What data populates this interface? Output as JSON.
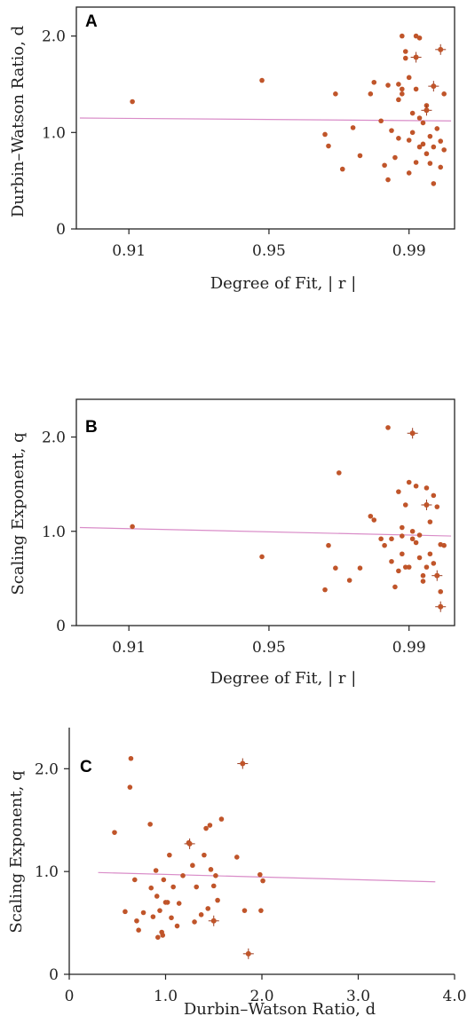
{
  "chart_data": [
    {
      "type": "scatter",
      "panel_label": "A",
      "title": "",
      "xlabel": "Degree of Fit,  | r |",
      "ylabel": "Durbin–Watson Ratio,  d",
      "xlim": [
        0.895,
        1.003
      ],
      "ylim": [
        0,
        2.3
      ],
      "xticks": [
        0.91,
        0.95,
        0.99
      ],
      "xtick_labels": [
        "0.91",
        "0.95",
        "0.99"
      ],
      "yticks": [
        0,
        1.0,
        2.0
      ],
      "ytick_labels": [
        "0",
        "1.0",
        "2.0"
      ],
      "grid": false,
      "colors": {
        "points": "#c0552a",
        "trend": "#d98cc8",
        "axis": "#222222"
      },
      "trend_line": {
        "x": [
          0.896,
          1.002
        ],
        "y": [
          1.15,
          1.12
        ]
      },
      "points": [
        [
          0.911,
          1.32
        ],
        [
          0.948,
          1.54
        ],
        [
          0.969,
          1.4
        ],
        [
          0.966,
          0.98
        ],
        [
          0.967,
          0.86
        ],
        [
          0.971,
          0.62
        ],
        [
          0.974,
          1.05
        ],
        [
          0.976,
          0.76
        ],
        [
          0.979,
          1.4
        ],
        [
          0.98,
          1.52
        ],
        [
          0.982,
          1.12
        ],
        [
          0.983,
          0.66
        ],
        [
          0.984,
          0.51
        ],
        [
          0.984,
          1.49
        ],
        [
          0.985,
          1.02
        ],
        [
          0.986,
          0.74
        ],
        [
          0.987,
          0.94
        ],
        [
          0.987,
          1.34
        ],
        [
          0.987,
          1.5
        ],
        [
          0.988,
          1.4
        ],
        [
          0.988,
          1.45
        ],
        [
          0.988,
          2.0
        ],
        [
          0.989,
          1.84
        ],
        [
          0.989,
          1.77
        ],
        [
          0.99,
          0.58
        ],
        [
          0.99,
          0.92
        ],
        [
          0.99,
          1.57
        ],
        [
          0.991,
          1.0
        ],
        [
          0.991,
          1.2
        ],
        [
          0.992,
          0.69
        ],
        [
          0.992,
          1.45
        ],
        [
          0.992,
          2.0
        ],
        [
          0.993,
          1.98
        ],
        [
          0.993,
          1.15
        ],
        [
          0.993,
          0.85
        ],
        [
          0.994,
          1.1
        ],
        [
          0.994,
          0.88
        ],
        [
          0.995,
          1.28
        ],
        [
          0.995,
          0.78
        ],
        [
          0.996,
          0.96
        ],
        [
          0.996,
          0.68
        ],
        [
          0.997,
          0.47
        ],
        [
          0.997,
          0.85
        ],
        [
          0.998,
          1.04
        ],
        [
          0.999,
          0.91
        ],
        [
          0.999,
          0.64
        ],
        [
          1.0,
          0.82
        ],
        [
          1.0,
          1.4
        ]
      ],
      "error_points": [
        [
          0.992,
          1.78
        ],
        [
          0.995,
          1.23
        ],
        [
          0.997,
          1.48
        ],
        [
          0.999,
          1.86
        ]
      ]
    },
    {
      "type": "scatter",
      "panel_label": "B",
      "title": "",
      "xlabel": "Degree of Fit,  | r |",
      "ylabel": "Scaling Exponent,  q",
      "xlim": [
        0.895,
        1.003
      ],
      "ylim": [
        0,
        2.4
      ],
      "xticks": [
        0.91,
        0.95,
        0.99
      ],
      "xtick_labels": [
        "0.91",
        "0.95",
        "0.99"
      ],
      "yticks": [
        0,
        1.0,
        2.0
      ],
      "ytick_labels": [
        "0",
        "1.0",
        "2.0"
      ],
      "grid": false,
      "colors": {
        "points": "#c0552a",
        "trend": "#d98cc8",
        "axis": "#222222"
      },
      "trend_line": {
        "x": [
          0.896,
          1.002
        ],
        "y": [
          1.04,
          0.95
        ]
      },
      "points": [
        [
          0.911,
          1.05
        ],
        [
          0.948,
          0.73
        ],
        [
          0.966,
          0.38
        ],
        [
          0.967,
          0.85
        ],
        [
          0.969,
          0.61
        ],
        [
          0.97,
          1.62
        ],
        [
          0.973,
          0.48
        ],
        [
          0.976,
          0.61
        ],
        [
          0.979,
          1.16
        ],
        [
          0.98,
          1.12
        ],
        [
          0.982,
          0.92
        ],
        [
          0.983,
          0.85
        ],
        [
          0.984,
          2.1
        ],
        [
          0.985,
          0.68
        ],
        [
          0.985,
          0.92
        ],
        [
          0.986,
          0.41
        ],
        [
          0.987,
          1.42
        ],
        [
          0.987,
          0.58
        ],
        [
          0.988,
          0.76
        ],
        [
          0.988,
          1.04
        ],
        [
          0.988,
          0.95
        ],
        [
          0.989,
          0.62
        ],
        [
          0.989,
          1.28
        ],
        [
          0.99,
          0.62
        ],
        [
          0.99,
          1.52
        ],
        [
          0.991,
          0.92
        ],
        [
          0.991,
          1.0
        ],
        [
          0.992,
          1.48
        ],
        [
          0.992,
          0.88
        ],
        [
          0.993,
          0.72
        ],
        [
          0.993,
          0.96
        ],
        [
          0.994,
          0.53
        ],
        [
          0.994,
          0.47
        ],
        [
          0.995,
          1.46
        ],
        [
          0.995,
          0.62
        ],
        [
          0.996,
          1.1
        ],
        [
          0.996,
          0.76
        ],
        [
          0.997,
          1.38
        ],
        [
          0.997,
          0.66
        ],
        [
          0.998,
          1.26
        ],
        [
          0.998,
          0.53
        ],
        [
          0.999,
          0.86
        ],
        [
          0.999,
          0.36
        ],
        [
          1.0,
          0.85
        ]
      ],
      "error_points": [
        [
          0.991,
          2.04
        ],
        [
          0.995,
          1.28
        ],
        [
          0.998,
          0.53
        ],
        [
          0.999,
          0.2
        ]
      ]
    },
    {
      "type": "scatter",
      "panel_label": "C",
      "title": "",
      "xlabel": "Durbin–Watson Ratio,  d",
      "ylabel": "Scaling Exponent,  q",
      "xlim": [
        0,
        4.0
      ],
      "ylim": [
        0,
        2.4
      ],
      "xticks": [
        0,
        1.0,
        2.0,
        3.0,
        4.0
      ],
      "xtick_labels": [
        "0",
        "1.0",
        "2.0",
        "3.0",
        "4.0"
      ],
      "yticks": [
        0,
        1.0,
        2.0
      ],
      "ytick_labels": [
        "0",
        "1.0",
        "2.0"
      ],
      "grid": false,
      "colors": {
        "points": "#c0552a",
        "trend": "#d98cc8",
        "axis": "#222222"
      },
      "trend_line": {
        "x": [
          0.3,
          3.8
        ],
        "y": [
          0.99,
          0.9
        ]
      },
      "points": [
        [
          0.47,
          1.38
        ],
        [
          0.58,
          0.61
        ],
        [
          0.64,
          2.1
        ],
        [
          0.63,
          1.82
        ],
        [
          0.68,
          0.92
        ],
        [
          0.7,
          0.52
        ],
        [
          0.72,
          0.43
        ],
        [
          0.77,
          0.6
        ],
        [
          0.84,
          1.46
        ],
        [
          0.85,
          0.84
        ],
        [
          0.87,
          0.56
        ],
        [
          0.9,
          1.01
        ],
        [
          0.91,
          0.76
        ],
        [
          0.92,
          0.36
        ],
        [
          0.94,
          0.62
        ],
        [
          0.96,
          0.41
        ],
        [
          0.97,
          0.38
        ],
        [
          0.98,
          0.92
        ],
        [
          1.0,
          0.7
        ],
        [
          1.02,
          0.7
        ],
        [
          1.04,
          1.16
        ],
        [
          1.06,
          0.55
        ],
        [
          1.08,
          0.85
        ],
        [
          1.12,
          0.47
        ],
        [
          1.14,
          0.69
        ],
        [
          1.18,
          0.96
        ],
        [
          1.24,
          1.28
        ],
        [
          1.28,
          1.06
        ],
        [
          1.3,
          0.51
        ],
        [
          1.32,
          0.85
        ],
        [
          1.37,
          0.58
        ],
        [
          1.4,
          1.16
        ],
        [
          1.42,
          1.42
        ],
        [
          1.44,
          0.64
        ],
        [
          1.46,
          1.45
        ],
        [
          1.47,
          1.02
        ],
        [
          1.5,
          0.86
        ],
        [
          1.52,
          0.96
        ],
        [
          1.54,
          0.72
        ],
        [
          1.58,
          1.51
        ],
        [
          1.74,
          1.14
        ],
        [
          1.82,
          0.62
        ],
        [
          1.98,
          0.97
        ],
        [
          1.99,
          0.62
        ],
        [
          2.01,
          0.91
        ]
      ],
      "error_points": [
        [
          1.8,
          2.05
        ],
        [
          1.25,
          1.27
        ],
        [
          1.5,
          0.52
        ],
        [
          1.86,
          0.2
        ]
      ]
    }
  ]
}
